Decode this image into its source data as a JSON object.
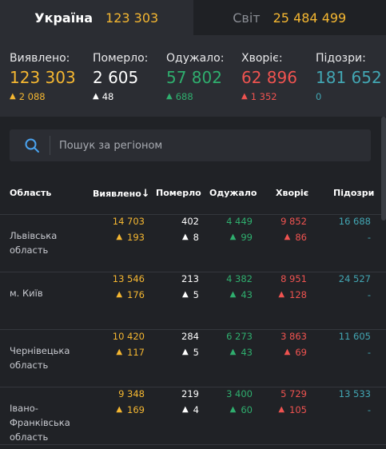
{
  "tabs": [
    {
      "label": "Україна",
      "value": "123 303"
    },
    {
      "label": "Світ",
      "value": "25 484 499"
    }
  ],
  "summary": [
    {
      "label": "Виявлено:",
      "value": "123 303",
      "delta": "2 088",
      "color": "#f5b731"
    },
    {
      "label": "Померло:",
      "value": "2 605",
      "delta": "48",
      "color": "#ffffff"
    },
    {
      "label": "Одужало:",
      "value": "57 802",
      "delta": "688",
      "color": "#2fae6e"
    },
    {
      "label": "Хворіє:",
      "value": "62 896",
      "delta": "1 352",
      "color": "#ef5350"
    },
    {
      "label": "Підозри:",
      "value": "181 652",
      "delta": "0",
      "color": "#42a6b3"
    }
  ],
  "search": {
    "placeholder": "Пошук за регіоном"
  },
  "table": {
    "headers": {
      "region": "Область",
      "confirmed": "Виявлено",
      "deaths": "Померло",
      "recovered": "Одужало",
      "sick": "Хворіє",
      "suspected": "Підозри"
    },
    "sort_indicator": "↓",
    "rows": [
      {
        "region": "Львівська область",
        "confirmed": "14 703",
        "confirmed_delta": "193",
        "deaths": "402",
        "deaths_delta": "8",
        "recovered": "4 449",
        "recovered_delta": "99",
        "sick": "9 852",
        "sick_delta": "86",
        "suspected": "16 688",
        "suspected_delta": "-"
      },
      {
        "region": "м. Київ",
        "confirmed": "13 546",
        "confirmed_delta": "176",
        "deaths": "213",
        "deaths_delta": "5",
        "recovered": "4 382",
        "recovered_delta": "43",
        "sick": "8 951",
        "sick_delta": "128",
        "suspected": "24 527",
        "suspected_delta": "-"
      },
      {
        "region": "Чернівецька область",
        "confirmed": "10 420",
        "confirmed_delta": "117",
        "deaths": "284",
        "deaths_delta": "5",
        "recovered": "6 273",
        "recovered_delta": "43",
        "sick": "3 863",
        "sick_delta": "69",
        "suspected": "11 605",
        "suspected_delta": "-"
      },
      {
        "region": "Івано-Франківська область",
        "confirmed": "9 348",
        "confirmed_delta": "169",
        "deaths": "219",
        "deaths_delta": "4",
        "recovered": "3 400",
        "recovered_delta": "60",
        "sick": "5 729",
        "sick_delta": "105",
        "suspected": "13 533",
        "suspected_delta": "-"
      }
    ]
  },
  "icons": {
    "search": "search-icon",
    "delta": "arrow-up-icon"
  }
}
